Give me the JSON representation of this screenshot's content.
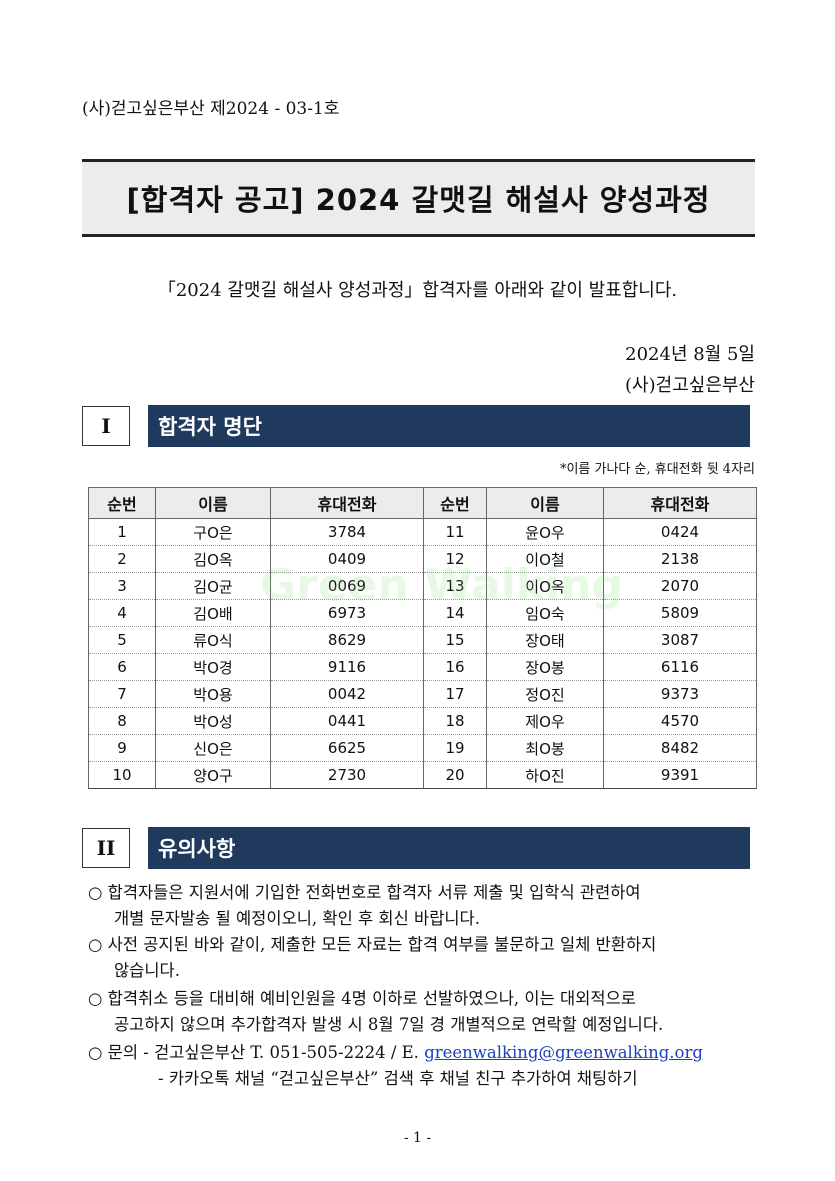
{
  "doc_number": "(사)걷고싶은부산 제2024 - 03-1호",
  "title": "[합격자 공고] 2024 갈맷길 해설사 양성과정",
  "intro": "「2024 갈맷길 해설사 양성과정」합격자를 아래와 같이 발표합니다.",
  "date": "2024년 8월 5일",
  "organization": "(사)걷고싶은부산",
  "watermark": "Green Walking",
  "section1": {
    "number": "I",
    "title": "합격자 명단",
    "note": "*이름 가나다 순, 휴대전화 뒷 4자리",
    "headers": [
      "순번",
      "이름",
      "휴대전화",
      "순번",
      "이름",
      "휴대전화"
    ],
    "rows": [
      [
        "1",
        "구O은",
        "3784",
        "11",
        "윤O우",
        "0424"
      ],
      [
        "2",
        "김O옥",
        "0409",
        "12",
        "이O철",
        "2138"
      ],
      [
        "3",
        "김O균",
        "0069",
        "13",
        "이O옥",
        "2070"
      ],
      [
        "4",
        "김O배",
        "6973",
        "14",
        "임O숙",
        "5809"
      ],
      [
        "5",
        "류O식",
        "8629",
        "15",
        "장O태",
        "3087"
      ],
      [
        "6",
        "박O경",
        "9116",
        "16",
        "장O봉",
        "6116"
      ],
      [
        "7",
        "박O용",
        "0042",
        "17",
        "정O진",
        "9373"
      ],
      [
        "8",
        "박O성",
        "0441",
        "18",
        "제O우",
        "4570"
      ],
      [
        "9",
        "신O은",
        "6625",
        "19",
        "최O봉",
        "8482"
      ],
      [
        "10",
        "양O구",
        "2730",
        "20",
        "하O진",
        "9391"
      ]
    ]
  },
  "section2": {
    "number": "II",
    "title": "유의사항",
    "lines": [
      "○ 합격자들은 지원서에 기입한 전화번호로 합격자 서류 제출 및 입학식 관련하여",
      "개별 문자발송 될 예정이오니, 확인 후 회신 바랍니다.",
      "○ 사전 공지된 바와 같이, 제출한 모든 자료는 합격 여부를 불문하고 일체 반환하지",
      "않습니다.",
      "○ 합격취소 등을 대비해 예비인원을 4명 이하로 선발하였으나, 이는 대외적으로",
      "공고하지 않으며 추가합격자 발생 시 8월 7일 경 개별적으로 연락할 예정입니다."
    ],
    "contact_prefix": "○ 문의 - 걷고싶은부산 T. 051-505-2224 / E. ",
    "email": "greenwalking@greenwalking.org",
    "kakao": "- 카카오톡 채널 “걷고싶은부산” 검색 후 채널 친구 추가하여 채팅하기"
  },
  "page_number": "- 1 -"
}
